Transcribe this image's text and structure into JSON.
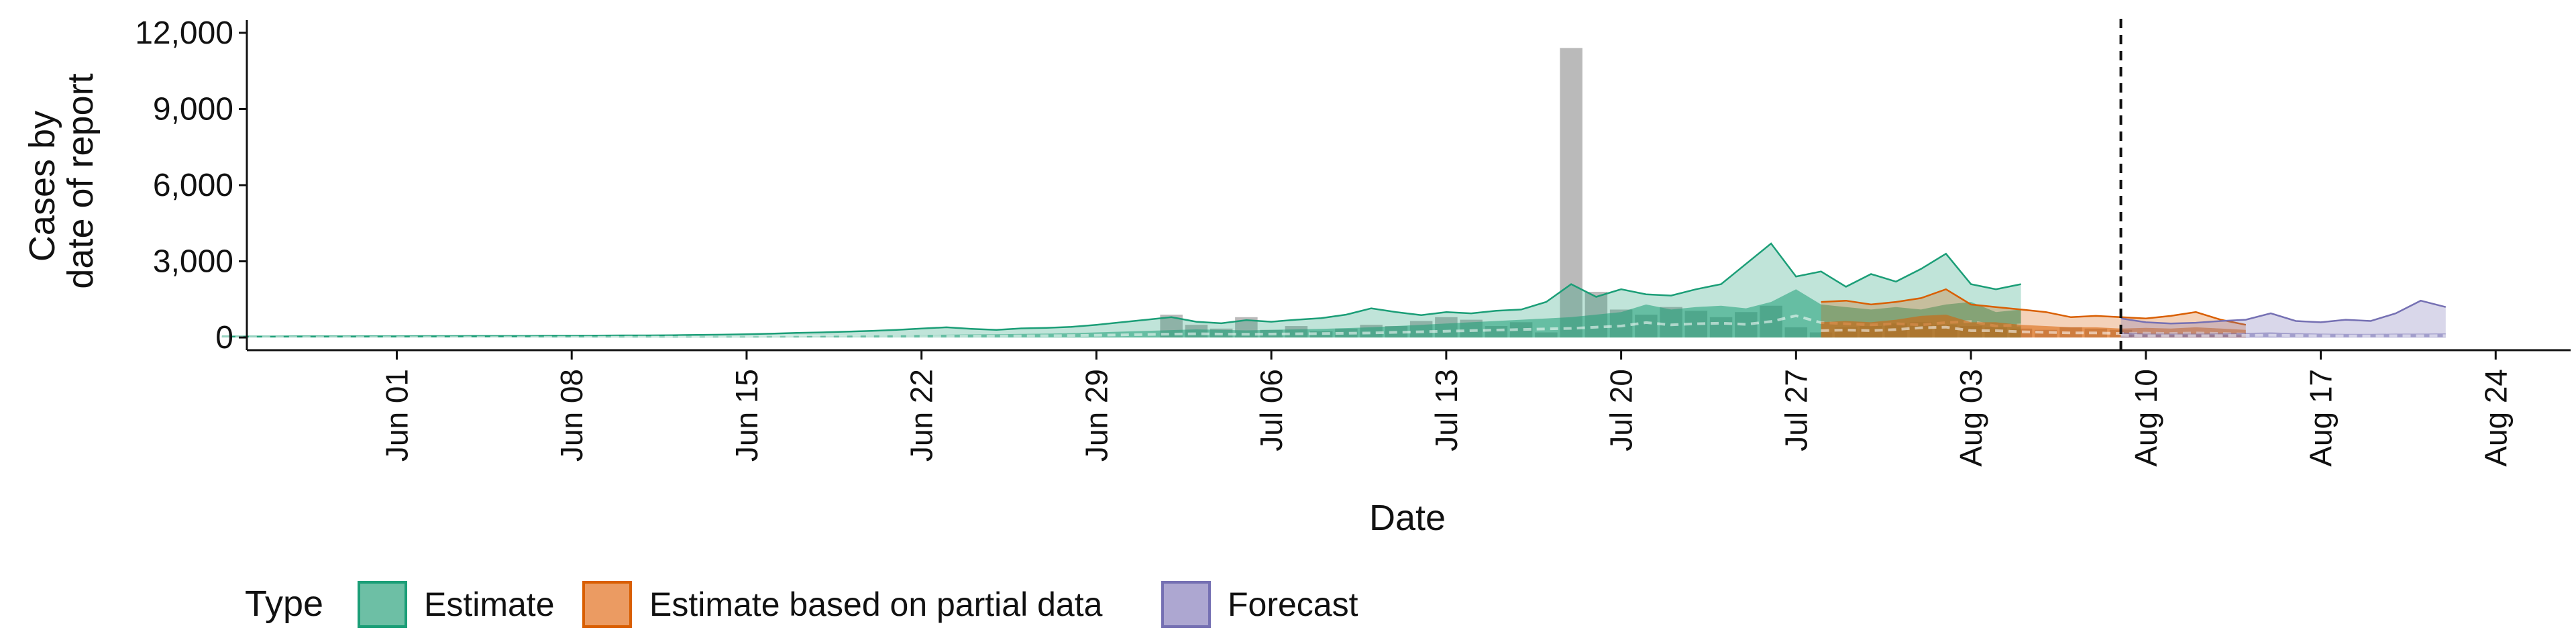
{
  "chart_data": {
    "type": "area",
    "xlabel": "Date",
    "ylabel_lines": [
      "Cases by",
      "date of report"
    ],
    "ylim": [
      -500,
      12500
    ],
    "yticks": [
      0,
      3000,
      6000,
      9000,
      12000
    ],
    "ytick_labels": [
      "0",
      "3,000",
      "6,000",
      "9,000",
      "12,000"
    ],
    "xlim": [
      "2020-05-26",
      "2020-08-27"
    ],
    "xticks": [
      "2020-06-01",
      "2020-06-08",
      "2020-06-15",
      "2020-06-22",
      "2020-06-29",
      "2020-07-06",
      "2020-07-13",
      "2020-07-20",
      "2020-07-27",
      "2020-08-03",
      "2020-08-10",
      "2020-08-17",
      "2020-08-24"
    ],
    "xtick_labels": [
      "Jun 01",
      "Jun 08",
      "Jun 15",
      "Jun 22",
      "Jun 29",
      "Jul 06",
      "Jul 13",
      "Jul 20",
      "Jul 27",
      "Aug 03",
      "Aug 10",
      "Aug 17",
      "Aug 24"
    ],
    "vline_date": "2020-08-09",
    "grid": false,
    "legend": {
      "title": "Type",
      "position": "bottom-left",
      "entries": [
        {
          "label": "Estimate",
          "fill": "#6dbfa5",
          "stroke": "#1b9e77"
        },
        {
          "label": "Estimate based on partial data",
          "fill": "#eb9b62",
          "stroke": "#d95f02"
        },
        {
          "label": "Forecast",
          "fill": "#ada7d1",
          "stroke": "#7570b3"
        }
      ]
    },
    "observed_bars": {
      "color": "#b3b3b3",
      "start": "2020-07-02",
      "values": [
        900,
        500,
        350,
        800,
        300,
        450,
        250,
        350,
        500,
        450,
        650,
        800,
        700,
        450,
        600,
        200,
        11400,
        1800,
        1100,
        900,
        1200,
        1050,
        800,
        1000,
        1250,
        400,
        200,
        400,
        450,
        550,
        600,
        500,
        450,
        400,
        350,
        300,
        400,
        350,
        300
      ]
    },
    "series": [
      {
        "name": "Estimate",
        "color": "#1b9e77",
        "start": "2020-05-25",
        "inner_upper": [
          20,
          20,
          20,
          20,
          20,
          20,
          20,
          20,
          25,
          25,
          25,
          25,
          25,
          30,
          30,
          30,
          30,
          35,
          35,
          35,
          40,
          40,
          45,
          50,
          60,
          70,
          80,
          90,
          100,
          110,
          120,
          130,
          140,
          150,
          170,
          200,
          230,
          260,
          290,
          320,
          300,
          280,
          300,
          320,
          340,
          370,
          400,
          450,
          500,
          550,
          600,
          650,
          700,
          750,
          800,
          900,
          1000,
          1300,
          1100,
          1200,
          1250,
          1150,
          1400,
          1900,
          1300,
          1200,
          1100,
          1200,
          1100,
          1300,
          1400,
          1000,
          1100
        ],
        "outer_upper": [
          40,
          40,
          40,
          45,
          45,
          45,
          50,
          50,
          55,
          55,
          60,
          60,
          60,
          70,
          70,
          75,
          80,
          80,
          90,
          100,
          110,
          130,
          150,
          180,
          200,
          230,
          260,
          300,
          350,
          400,
          340,
          300,
          360,
          380,
          420,
          500,
          600,
          700,
          800,
          620,
          560,
          680,
          620,
          700,
          760,
          900,
          1150,
          1000,
          880,
          1000,
          950,
          1050,
          1100,
          1400,
          2100,
          1600,
          1900,
          1700,
          1650,
          1900,
          2100,
          2900,
          3700,
          2400,
          2600,
          2000,
          2500,
          2200,
          2700,
          3300,
          2100,
          1900,
          2100
        ]
      },
      {
        "name": "Estimate based on partial data",
        "color": "#d95f02",
        "start": "2020-07-28",
        "inner_upper": [
          600,
          650,
          600,
          700,
          850,
          900,
          600,
          600,
          500,
          450,
          400,
          400,
          350,
          380,
          350,
          400,
          350,
          300
        ],
        "outer_upper": [
          1400,
          1450,
          1300,
          1400,
          1550,
          1900,
          1300,
          1200,
          1100,
          1000,
          800,
          850,
          800,
          750,
          850,
          1000,
          700,
          500
        ]
      },
      {
        "name": "Forecast",
        "color": "#7570b3",
        "start": "2020-08-09",
        "inner_upper": [
          200,
          150,
          150,
          150,
          160,
          180,
          200,
          170,
          150,
          140,
          140,
          150,
          150,
          160
        ],
        "outer_upper": [
          750,
          600,
          550,
          580,
          650,
          700,
          950,
          650,
          600,
          700,
          650,
          950,
          1450,
          1200
        ]
      }
    ]
  }
}
